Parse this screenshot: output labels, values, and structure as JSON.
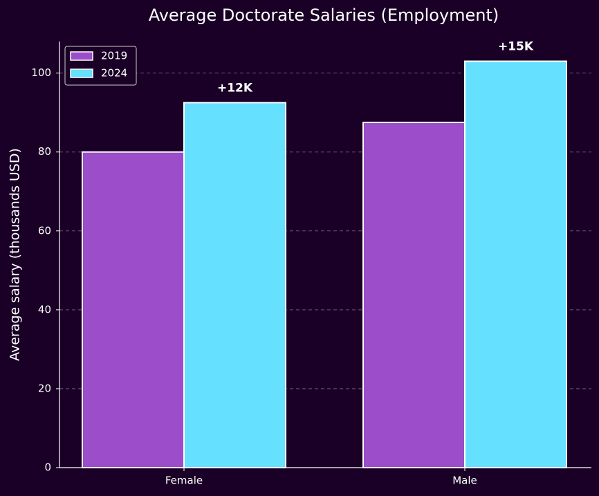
{
  "chart_data": {
    "type": "bar",
    "title": "Average Doctorate Salaries (Employment)",
    "y_label": "Average salary (thousands USD)",
    "categories": [
      "Female",
      "Male"
    ],
    "series": [
      {
        "name": "2019",
        "color": "#9b4dca",
        "values": [
          80,
          87.5
        ]
      },
      {
        "name": "2024",
        "color": "#66e0ff",
        "values": [
          92.5,
          103
        ]
      }
    ],
    "annotations": [
      "+12K",
      "+15K"
    ],
    "ylim": [
      0,
      108
    ],
    "yticks": [
      0,
      20,
      40,
      60,
      80,
      100
    ],
    "grid": true,
    "legend": "upper left"
  }
}
